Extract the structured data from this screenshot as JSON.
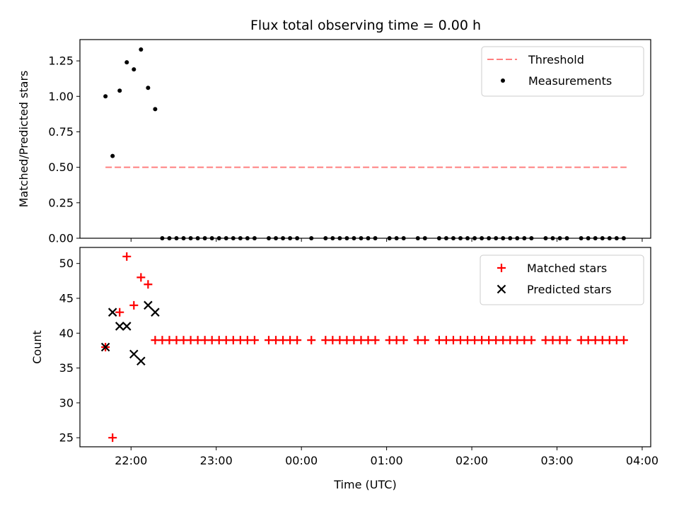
{
  "chart_data": [
    {
      "type": "scatter",
      "title": "Flux total observing time = 0.00 h",
      "ylabel": "Matched/Predicted stars",
      "ylim": [
        0,
        1.4
      ],
      "yticks": [
        0,
        0.25,
        0.5,
        0.75,
        1.0,
        1.25
      ],
      "ytick_labels": [
        "0.00",
        "0.25",
        "0.50",
        "0.75",
        "1.00",
        "1.25"
      ],
      "legend": "top-right",
      "series": [
        {
          "name": "Threshold",
          "kind": "dashed-line",
          "color": "#ff7f7f",
          "x": [
            "21:42",
            "03:49"
          ],
          "y": [
            0.5,
            0.5
          ]
        },
        {
          "name": "Measurements",
          "kind": "dot",
          "color": "#000000",
          "x": [
            "21:42",
            "21:47",
            "21:52",
            "21:57",
            "22:02",
            "22:07",
            "22:12",
            "22:17",
            "22:22",
            "22:27",
            "22:32",
            "22:37",
            "22:42",
            "22:47",
            "22:52",
            "22:57",
            "23:02",
            "23:07",
            "23:12",
            "23:17",
            "23:22",
            "23:27",
            "23:37",
            "23:42",
            "23:47",
            "23:52",
            "23:57",
            "00:07",
            "00:17",
            "00:22",
            "00:27",
            "00:32",
            "00:37",
            "00:42",
            "00:47",
            "00:52",
            "01:02",
            "01:07",
            "01:12",
            "01:22",
            "01:27",
            "01:37",
            "01:42",
            "01:47",
            "01:52",
            "01:57",
            "02:02",
            "02:07",
            "02:12",
            "02:17",
            "02:22",
            "02:27",
            "02:32",
            "02:37",
            "02:42",
            "02:52",
            "02:57",
            "03:02",
            "03:07",
            "03:17",
            "03:22",
            "03:27",
            "03:32",
            "03:37",
            "03:42",
            "03:47"
          ],
          "y": [
            1.0,
            0.58,
            1.04,
            1.24,
            1.19,
            1.33,
            1.06,
            0.91,
            0,
            0,
            0,
            0,
            0,
            0,
            0,
            0,
            0,
            0,
            0,
            0,
            0,
            0,
            0,
            0,
            0,
            0,
            0,
            0,
            0,
            0,
            0,
            0,
            0,
            0,
            0,
            0,
            0,
            0,
            0,
            0,
            0,
            0,
            0,
            0,
            0,
            0,
            0,
            0,
            0,
            0,
            0,
            0,
            0,
            0,
            0,
            0,
            0,
            0,
            0,
            0,
            0,
            0,
            0,
            0,
            0,
            0
          ]
        }
      ]
    },
    {
      "type": "scatter",
      "xlabel": "Time (UTC)",
      "ylabel": "Count",
      "ylim": [
        23.7,
        52.3
      ],
      "yticks": [
        25,
        30,
        35,
        40,
        45,
        50
      ],
      "xticks": [
        "22:00",
        "23:00",
        "00:00",
        "01:00",
        "02:00",
        "03:00",
        "04:00"
      ],
      "legend": "top-right",
      "series": [
        {
          "name": "Matched stars",
          "kind": "plus",
          "color": "#ff0000",
          "x": [
            "21:42",
            "21:47",
            "21:52",
            "21:57",
            "22:02",
            "22:07",
            "22:12",
            "22:17",
            "22:22",
            "22:27",
            "22:32",
            "22:37",
            "22:42",
            "22:47",
            "22:52",
            "22:57",
            "23:02",
            "23:07",
            "23:12",
            "23:17",
            "23:22",
            "23:27",
            "23:37",
            "23:42",
            "23:47",
            "23:52",
            "23:57",
            "00:07",
            "00:17",
            "00:22",
            "00:27",
            "00:32",
            "00:37",
            "00:42",
            "00:47",
            "00:52",
            "01:02",
            "01:07",
            "01:12",
            "01:22",
            "01:27",
            "01:37",
            "01:42",
            "01:47",
            "01:52",
            "01:57",
            "02:02",
            "02:07",
            "02:12",
            "02:17",
            "02:22",
            "02:27",
            "02:32",
            "02:37",
            "02:42",
            "02:52",
            "02:57",
            "03:02",
            "03:07",
            "03:17",
            "03:22",
            "03:27",
            "03:32",
            "03:37",
            "03:42",
            "03:47"
          ],
          "y": [
            38,
            25,
            43,
            51,
            44,
            48,
            47,
            39,
            39,
            39,
            39,
            39,
            39,
            39,
            39,
            39,
            39,
            39,
            39,
            39,
            39,
            39,
            39,
            39,
            39,
            39,
            39,
            39,
            39,
            39,
            39,
            39,
            39,
            39,
            39,
            39,
            39,
            39,
            39,
            39,
            39,
            39,
            39,
            39,
            39,
            39,
            39,
            39,
            39,
            39,
            39,
            39,
            39,
            39,
            39,
            39,
            39,
            39,
            39,
            39,
            39,
            39,
            39,
            39,
            39,
            39
          ]
        },
        {
          "name": "Predicted stars",
          "kind": "x",
          "color": "#000000",
          "x": [
            "21:42",
            "21:47",
            "21:52",
            "21:57",
            "22:02",
            "22:07",
            "22:12",
            "22:17"
          ],
          "y": [
            38,
            43,
            41,
            41,
            37,
            36,
            44,
            43
          ]
        }
      ]
    }
  ]
}
